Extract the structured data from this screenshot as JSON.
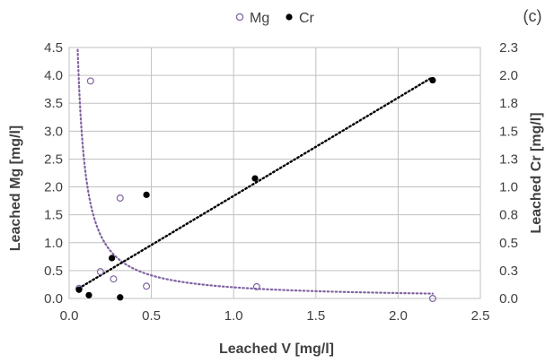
{
  "chart_data": {
    "type": "scatter",
    "panel_label": "(c)",
    "xlabel": "Leached V [mg/l]",
    "ylabel_left": "Leached Mg [mg/l]",
    "ylabel_right": "Leached Cr [mg/l]",
    "xlim": [
      0,
      2.5
    ],
    "ylim_left": [
      0,
      4.5
    ],
    "ylim_right": [
      0,
      2.3
    ],
    "x_ticks": [
      "0.0",
      "0.5",
      "1.0",
      "1.5",
      "2.0",
      "2.5"
    ],
    "y_left_ticks": [
      "0.0",
      "0.5",
      "1.0",
      "1.5",
      "2.0",
      "2.5",
      "3.0",
      "3.5",
      "4.0",
      "4.5"
    ],
    "y_right_ticks": [
      "0.0",
      "0.3",
      "0.5",
      "0.8",
      "1.0",
      "1.3",
      "1.5",
      "1.8",
      "2.0",
      "2.3"
    ],
    "grid": true,
    "legend_position": "top-center",
    "colors": {
      "mg": "#8064a2",
      "cr": "#000000",
      "grid": "#c0c0c0",
      "text": "#404040"
    },
    "series": [
      {
        "name": "Mg",
        "axis": "left",
        "marker": "open-circle",
        "color": "#8064a2",
        "points": [
          {
            "x": 0.06,
            "y": 0.18
          },
          {
            "x": 0.13,
            "y": 3.9
          },
          {
            "x": 0.19,
            "y": 0.48
          },
          {
            "x": 0.27,
            "y": 0.35
          },
          {
            "x": 0.31,
            "y": 1.8
          },
          {
            "x": 0.47,
            "y": 0.22
          },
          {
            "x": 1.14,
            "y": 0.21
          },
          {
            "x": 2.21,
            "y": 0.0
          }
        ],
        "trendline": {
          "style": "dotted",
          "kind": "power",
          "a": 0.2,
          "b": -1.05,
          "x_start": 0.052,
          "x_end": 2.21
        }
      },
      {
        "name": "Cr",
        "axis": "right",
        "marker": "filled-circle",
        "color": "#000000",
        "points": [
          {
            "x": 0.06,
            "y": 0.08
          },
          {
            "x": 0.12,
            "y": 0.03
          },
          {
            "x": 0.26,
            "y": 0.37
          },
          {
            "x": 0.31,
            "y": 0.01
          },
          {
            "x": 0.47,
            "y": 0.95
          },
          {
            "x": 1.13,
            "y": 1.1
          },
          {
            "x": 2.21,
            "y": 2.0
          }
        ],
        "trendline": {
          "style": "dotted",
          "kind": "linear",
          "slope": 0.9,
          "intercept": 0.04,
          "x_start": 0.06,
          "x_end": 2.21
        }
      }
    ]
  }
}
